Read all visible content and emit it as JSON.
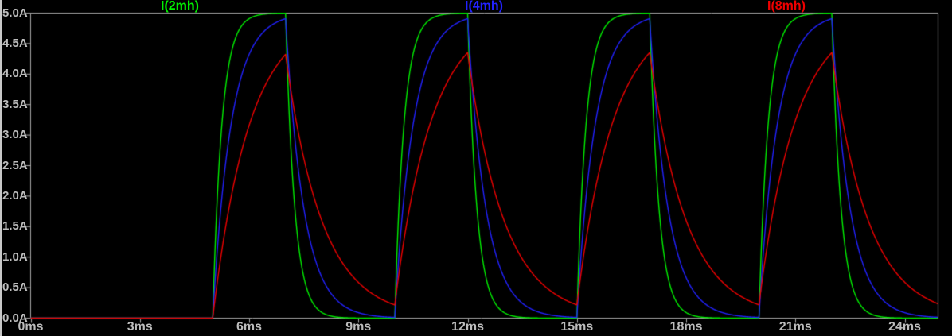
{
  "window": {
    "background_color": "#000000",
    "left_border_color": "#c8c8c8"
  },
  "chart_data": {
    "type": "line",
    "title": "",
    "grid": false,
    "legend_position": "top",
    "axis_color": "#a6a6a6",
    "tick_label_color": "#bcbcbc",
    "x_unit": "ms",
    "y_unit": "A",
    "x_range_ms": [
      0,
      24.92
    ],
    "y_range_A": [
      0.0,
      5.0
    ],
    "x_ticks": [
      {
        "value": 0,
        "label": "0ms"
      },
      {
        "value": 3,
        "label": "3ms"
      },
      {
        "value": 6,
        "label": "6ms"
      },
      {
        "value": 9,
        "label": "9ms"
      },
      {
        "value": 12,
        "label": "12ms"
      },
      {
        "value": 15,
        "label": "15ms"
      },
      {
        "value": 18,
        "label": "18ms"
      },
      {
        "value": 21,
        "label": "21ms"
      },
      {
        "value": 24,
        "label": "24ms"
      }
    ],
    "y_ticks": [
      {
        "value": 5.0,
        "label": "5.0A"
      },
      {
        "value": 4.5,
        "label": "4.5A"
      },
      {
        "value": 4.0,
        "label": "4.0A"
      },
      {
        "value": 3.5,
        "label": "3.5A"
      },
      {
        "value": 3.0,
        "label": "3.0A"
      },
      {
        "value": 2.5,
        "label": "2.5A"
      },
      {
        "value": 2.0,
        "label": "2.0A"
      },
      {
        "value": 1.5,
        "label": "1.5A"
      },
      {
        "value": 1.0,
        "label": "1.0A"
      },
      {
        "value": 0.5,
        "label": "0.5A"
      },
      {
        "value": 0.0,
        "label": "0.0A"
      }
    ],
    "drive": {
      "description": "periodic pulse driving RL charge/discharge, current starts at 0A",
      "t_first_rise_ms": 5,
      "period_ms": 5,
      "on_time_ms": 2,
      "target_current_A": 5,
      "on_intervals_ms": [
        [
          5,
          7
        ],
        [
          10,
          12
        ],
        [
          15,
          17
        ],
        [
          20,
          22
        ]
      ]
    },
    "series": [
      {
        "name": "I(2mh)",
        "color": "#00ef00",
        "tau_ms": 0.25,
        "peak_A": 5.0,
        "valley_A": 0.0
      },
      {
        "name": "I(4mh)",
        "color": "#2222ff",
        "tau_ms": 0.5,
        "peak_A": 4.91,
        "valley_A": 0.01
      },
      {
        "name": "I(8mh)",
        "color": "#f00000",
        "tau_ms": 1.0,
        "peak_A": 4.35,
        "valley_A": 0.22
      }
    ]
  }
}
